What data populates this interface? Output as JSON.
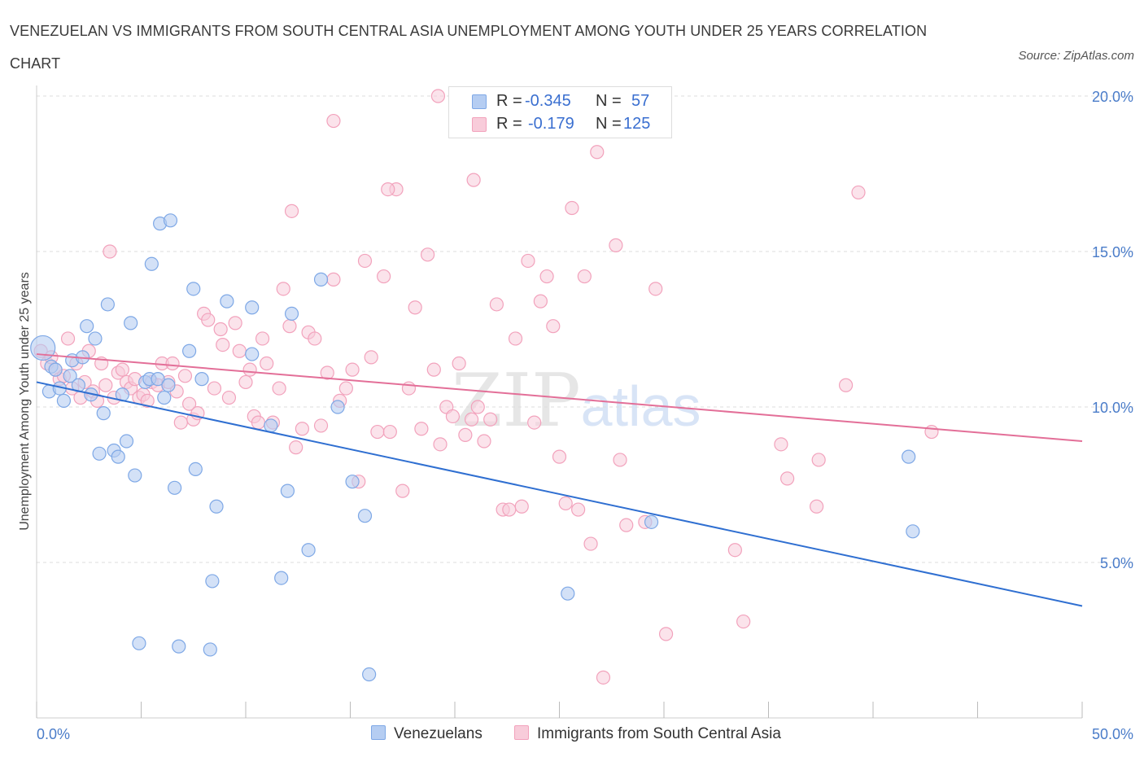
{
  "title": "VENEZUELAN VS IMMIGRANTS FROM SOUTH CENTRAL ASIA UNEMPLOYMENT AMONG YOUTH UNDER 25 YEARS CORRELATION CHART",
  "source": "Source: ZipAtlas.com",
  "watermark": {
    "zip": "ZIP",
    "atlas": "atlas"
  },
  "legend": {
    "rows": [
      {
        "r_label": "R =",
        "r_value": "-0.345",
        "n_label": "N =",
        "n_value": "57"
      },
      {
        "r_label": "R =",
        "r_value": "-0.179",
        "n_label": "N =",
        "n_value": "125"
      }
    ]
  },
  "chart_data": {
    "type": "scatter",
    "title": "VENEZUELAN VS IMMIGRANTS FROM SOUTH CENTRAL ASIA UNEMPLOYMENT AMONG YOUTH UNDER 25 YEARS CORRELATION CHART",
    "xlabel": "",
    "ylabel": "Unemployment Among Youth under 25 years",
    "xlim": [
      0,
      50
    ],
    "ylim": [
      0,
      20
    ],
    "x_tick_labels": [
      "0.0%",
      "50.0%"
    ],
    "y_tick_labels": [
      {
        "value": 20,
        "label": "20.0%"
      },
      {
        "value": 15,
        "label": "15.0%"
      },
      {
        "value": 10,
        "label": "10.0%"
      },
      {
        "value": 5,
        "label": "5.0%"
      }
    ],
    "grid": true,
    "legend_position": "bottom",
    "series": [
      {
        "name": "Venezuelans",
        "color": "#7ea8e6",
        "fill": "#b5cdf2",
        "line_color": "#2f6fd1",
        "trend": {
          "x": [
            0,
            50
          ],
          "y": [
            10.8,
            3.6
          ]
        },
        "points": [
          [
            0.3,
            11.9
          ],
          [
            0.6,
            10.5
          ],
          [
            0.7,
            11.3
          ],
          [
            0.9,
            11.2
          ],
          [
            1.1,
            10.6
          ],
          [
            1.3,
            10.2
          ],
          [
            1.6,
            11.0
          ],
          [
            1.7,
            11.5
          ],
          [
            2.0,
            10.7
          ],
          [
            2.2,
            11.6
          ],
          [
            2.4,
            12.6
          ],
          [
            2.6,
            10.4
          ],
          [
            2.8,
            12.2
          ],
          [
            3.0,
            8.5
          ],
          [
            3.2,
            9.8
          ],
          [
            3.4,
            13.3
          ],
          [
            3.7,
            8.6
          ],
          [
            3.9,
            8.4
          ],
          [
            4.1,
            10.4
          ],
          [
            4.3,
            8.9
          ],
          [
            4.5,
            12.7
          ],
          [
            4.7,
            7.8
          ],
          [
            4.9,
            2.4
          ],
          [
            5.2,
            10.8
          ],
          [
            5.4,
            10.9
          ],
          [
            5.5,
            14.6
          ],
          [
            5.8,
            10.9
          ],
          [
            5.9,
            15.9
          ],
          [
            6.1,
            10.3
          ],
          [
            6.3,
            10.7
          ],
          [
            6.4,
            16.0
          ],
          [
            6.6,
            7.4
          ],
          [
            6.8,
            2.3
          ],
          [
            7.3,
            11.8
          ],
          [
            7.5,
            13.8
          ],
          [
            7.6,
            8.0
          ],
          [
            7.9,
            10.9
          ],
          [
            8.3,
            2.2
          ],
          [
            8.4,
            4.4
          ],
          [
            8.6,
            6.8
          ],
          [
            9.1,
            13.4
          ],
          [
            10.3,
            13.2
          ],
          [
            10.3,
            11.7
          ],
          [
            11.2,
            9.4
          ],
          [
            11.7,
            4.5
          ],
          [
            12.0,
            7.3
          ],
          [
            12.2,
            13.0
          ],
          [
            13.0,
            5.4
          ],
          [
            13.6,
            14.1
          ],
          [
            14.4,
            10.0
          ],
          [
            15.1,
            7.6
          ],
          [
            15.7,
            6.5
          ],
          [
            15.9,
            1.4
          ],
          [
            25.4,
            4.0
          ],
          [
            29.4,
            6.3
          ],
          [
            41.7,
            8.4
          ],
          [
            41.9,
            6.0
          ]
        ]
      },
      {
        "name": "Immigrants from South Central Asia",
        "color": "#f2a2bc",
        "fill": "#f8ccda",
        "line_color": "#e36f98",
        "trend": {
          "x": [
            0,
            50
          ],
          "y": [
            11.7,
            8.9
          ]
        },
        "points": [
          [
            0.2,
            11.8
          ],
          [
            0.5,
            11.4
          ],
          [
            0.7,
            11.6
          ],
          [
            0.9,
            11.2
          ],
          [
            1.1,
            10.9
          ],
          [
            1.3,
            11.0
          ],
          [
            1.5,
            12.2
          ],
          [
            1.7,
            10.6
          ],
          [
            1.9,
            11.4
          ],
          [
            2.1,
            10.3
          ],
          [
            2.3,
            10.8
          ],
          [
            2.5,
            11.8
          ],
          [
            2.7,
            10.5
          ],
          [
            2.9,
            10.2
          ],
          [
            3.1,
            11.4
          ],
          [
            3.3,
            10.7
          ],
          [
            3.5,
            15.0
          ],
          [
            3.7,
            10.3
          ],
          [
            3.9,
            11.1
          ],
          [
            4.1,
            11.2
          ],
          [
            4.3,
            10.8
          ],
          [
            4.5,
            10.6
          ],
          [
            4.7,
            10.9
          ],
          [
            4.9,
            10.3
          ],
          [
            5.1,
            10.4
          ],
          [
            5.3,
            10.2
          ],
          [
            5.5,
            10.8
          ],
          [
            5.8,
            10.7
          ],
          [
            6.0,
            11.4
          ],
          [
            6.3,
            10.8
          ],
          [
            6.5,
            11.4
          ],
          [
            6.7,
            10.5
          ],
          [
            6.9,
            9.5
          ],
          [
            7.1,
            11.0
          ],
          [
            7.3,
            10.1
          ],
          [
            7.5,
            9.6
          ],
          [
            7.7,
            9.8
          ],
          [
            8.0,
            13.0
          ],
          [
            8.2,
            12.8
          ],
          [
            8.5,
            10.6
          ],
          [
            8.8,
            12.5
          ],
          [
            8.9,
            12.0
          ],
          [
            9.2,
            10.3
          ],
          [
            9.5,
            12.7
          ],
          [
            9.7,
            11.8
          ],
          [
            10.0,
            10.8
          ],
          [
            10.2,
            11.2
          ],
          [
            10.4,
            9.7
          ],
          [
            10.6,
            9.5
          ],
          [
            10.8,
            12.2
          ],
          [
            11.0,
            11.4
          ],
          [
            11.3,
            9.5
          ],
          [
            11.6,
            10.6
          ],
          [
            11.8,
            13.8
          ],
          [
            12.1,
            12.6
          ],
          [
            12.4,
            8.7
          ],
          [
            12.7,
            9.3
          ],
          [
            13.0,
            12.4
          ],
          [
            13.3,
            12.2
          ],
          [
            13.6,
            9.4
          ],
          [
            13.9,
            11.1
          ],
          [
            14.2,
            14.1
          ],
          [
            14.5,
            10.2
          ],
          [
            14.8,
            10.6
          ],
          [
            15.1,
            11.2
          ],
          [
            15.4,
            7.6
          ],
          [
            15.7,
            14.7
          ],
          [
            16.0,
            11.6
          ],
          [
            16.3,
            9.2
          ],
          [
            16.6,
            14.2
          ],
          [
            16.9,
            9.2
          ],
          [
            17.2,
            17.0
          ],
          [
            17.5,
            7.3
          ],
          [
            17.8,
            10.6
          ],
          [
            18.1,
            13.2
          ],
          [
            18.4,
            9.3
          ],
          [
            18.7,
            14.9
          ],
          [
            19.0,
            11.2
          ],
          [
            19.3,
            8.8
          ],
          [
            19.6,
            10.0
          ],
          [
            19.9,
            9.7
          ],
          [
            20.2,
            11.4
          ],
          [
            20.5,
            9.1
          ],
          [
            20.8,
            9.6
          ],
          [
            21.1,
            10.0
          ],
          [
            21.4,
            8.9
          ],
          [
            21.7,
            9.6
          ],
          [
            22.0,
            13.3
          ],
          [
            22.3,
            6.7
          ],
          [
            22.6,
            6.7
          ],
          [
            22.9,
            12.2
          ],
          [
            23.2,
            6.8
          ],
          [
            23.5,
            14.7
          ],
          [
            23.8,
            9.5
          ],
          [
            24.1,
            13.4
          ],
          [
            24.4,
            14.2
          ],
          [
            24.7,
            12.6
          ],
          [
            25.0,
            8.4
          ],
          [
            25.3,
            6.9
          ],
          [
            25.6,
            16.4
          ],
          [
            25.9,
            6.7
          ],
          [
            26.2,
            14.2
          ],
          [
            26.5,
            5.6
          ],
          [
            26.8,
            18.2
          ],
          [
            27.1,
            1.3
          ],
          [
            27.7,
            15.2
          ],
          [
            27.9,
            8.3
          ],
          [
            28.2,
            6.2
          ],
          [
            29.1,
            6.3
          ],
          [
            29.6,
            13.8
          ],
          [
            30.1,
            2.7
          ],
          [
            33.4,
            5.4
          ],
          [
            33.8,
            3.1
          ],
          [
            35.6,
            8.8
          ],
          [
            35.9,
            7.7
          ],
          [
            37.3,
            6.8
          ],
          [
            37.4,
            8.3
          ],
          [
            38.7,
            10.7
          ],
          [
            39.3,
            16.9
          ],
          [
            42.8,
            9.2
          ],
          [
            14.2,
            19.2
          ],
          [
            16.8,
            17.0
          ],
          [
            19.2,
            20.0
          ],
          [
            20.9,
            17.3
          ],
          [
            12.2,
            16.3
          ]
        ]
      }
    ]
  },
  "bottom_legend": [
    {
      "label": "Venezuelans"
    },
    {
      "label": "Immigrants from South Central Asia"
    }
  ]
}
